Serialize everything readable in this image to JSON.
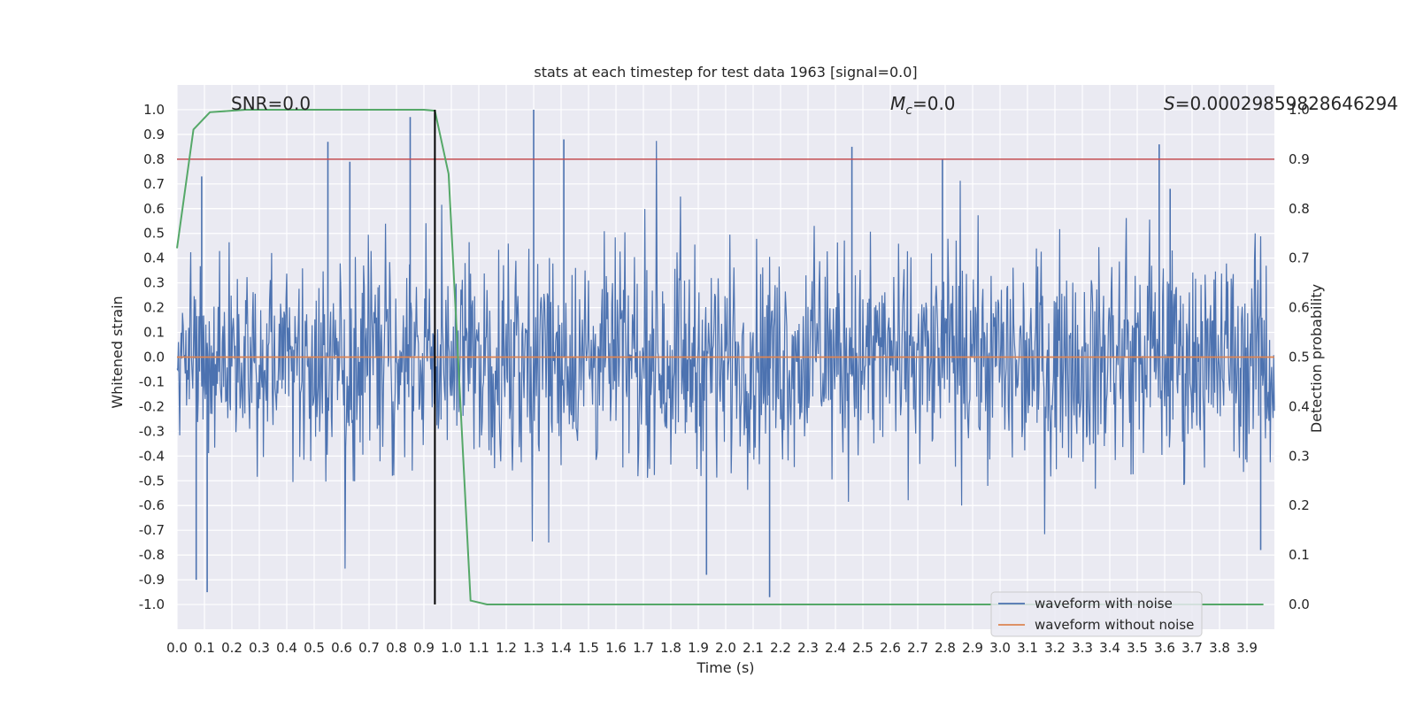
{
  "chart_data": {
    "type": "line",
    "title": "stats at each timestep for test data 1963 [signal=0.0]",
    "xlabel": "Time (s)",
    "ylabel": "Whitened strain",
    "ylabel_right": "Detection probability",
    "xlim": [
      0.0,
      4.0
    ],
    "ylim": [
      -1.1,
      1.1
    ],
    "ylim_right": [
      -0.05,
      1.05
    ],
    "x_ticks": [
      "0.0",
      "0.1",
      "0.2",
      "0.3",
      "0.4",
      "0.5",
      "0.6",
      "0.7",
      "0.8",
      "0.9",
      "1.0",
      "1.1",
      "1.2",
      "1.3",
      "1.4",
      "1.5",
      "1.6",
      "1.7",
      "1.8",
      "1.9",
      "2.0",
      "2.1",
      "2.2",
      "2.3",
      "2.4",
      "2.5",
      "2.6",
      "2.7",
      "2.8",
      "2.9",
      "3.0",
      "3.1",
      "3.2",
      "3.3",
      "3.4",
      "3.5",
      "3.6",
      "3.7",
      "3.8",
      "3.9"
    ],
    "y_ticks": [
      "1.0",
      "0.9",
      "0.8",
      "0.7",
      "0.6",
      "0.5",
      "0.4",
      "0.3",
      "0.2",
      "0.1",
      "0.0",
      "-0.1",
      "-0.2",
      "-0.3",
      "-0.4",
      "-0.5",
      "-0.6",
      "-0.7",
      "-0.8",
      "-0.9",
      "-1.0"
    ],
    "y_ticks_right": [
      "1.0",
      "0.9",
      "0.8",
      "0.7",
      "0.6",
      "0.5",
      "0.4",
      "0.3",
      "0.2",
      "0.1",
      "0.0"
    ],
    "grid": true,
    "legend_position": "lower-right",
    "series": [
      {
        "name": "waveform with noise",
        "color": "#4c72b0",
        "description_values": "dense noise, mostly within [-0.5, 0.6], peaks ~1.0 and ~-0.97"
      },
      {
        "name": "waveform without noise",
        "color": "#dd8452",
        "values_constant": 0.0
      }
    ],
    "detection_probability": {
      "color": "#55a868",
      "x": [
        0.0,
        0.06,
        0.12,
        0.25,
        0.5,
        0.75,
        0.9,
        0.94,
        0.99,
        1.07,
        1.13,
        1.2,
        1.5,
        2.0,
        2.5,
        3.0,
        3.5,
        3.96
      ],
      "y": [
        0.72,
        0.96,
        0.995,
        1.0,
        1.0,
        1.0,
        1.0,
        0.998,
        0.87,
        0.008,
        0.0,
        0.0,
        0.0,
        0.0,
        0.0,
        0.0,
        0.0,
        0.0
      ]
    },
    "threshold_line": {
      "y_right": 0.9,
      "color": "#c44e52"
    },
    "vertical_marker": {
      "x": 0.94,
      "color": "#000000"
    },
    "annotations": {
      "snr": "SNR=0.0",
      "mc_symbol": "M",
      "mc_sub": "c",
      "mc_value": "=0.0",
      "s_symbol": "S",
      "s_value": "=0.00029859828646294"
    },
    "colors": {
      "axes_bg": "#eaeaf2",
      "grid": "#ffffff",
      "text": "#262626"
    }
  }
}
